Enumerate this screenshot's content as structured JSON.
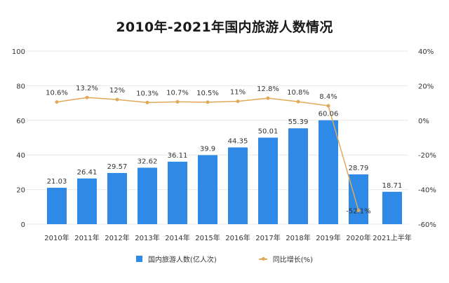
{
  "title": "2010年-2021年国内旅游人数情况",
  "colors": {
    "bar": "#2e8ae6",
    "line": "#e0a95a",
    "grid": "#e8e8e8",
    "text": "#333333"
  },
  "legend": [
    {
      "label": "国内旅游人数(亿人次)",
      "type": "bar"
    },
    {
      "label": "同比增长(%)",
      "type": "line"
    }
  ],
  "chart_data": {
    "type": "bar",
    "title": "2010年-2021年国内旅游人数情况",
    "categories": [
      "2010年",
      "2011年",
      "2012年",
      "2013年",
      "2014年",
      "2015年",
      "2016年",
      "2017年",
      "2018年",
      "2019年",
      "2020年",
      "2021上半年"
    ],
    "series": [
      {
        "name": "国内旅游人数(亿人次)",
        "type": "bar",
        "axis": "left",
        "values": [
          21.03,
          26.41,
          29.57,
          32.62,
          36.11,
          39.9,
          44.35,
          50.01,
          55.39,
          60.06,
          28.79,
          18.71
        ],
        "labels": [
          "21.03",
          "26.41",
          "29.57",
          "32.62",
          "36.11",
          "39.9",
          "44.35",
          "50.01",
          "55.39",
          "60.06",
          "28.79",
          "18.71"
        ]
      },
      {
        "name": "同比增长(%)",
        "type": "line",
        "axis": "right",
        "values": [
          10.6,
          13.2,
          12,
          10.3,
          10.7,
          10.5,
          11,
          12.8,
          10.8,
          8.4,
          -52.1,
          null
        ],
        "labels": [
          "10.6%",
          "13.2%",
          "12%",
          "10.3%",
          "10.7%",
          "10.5%",
          "11%",
          "12.8%",
          "10.8%",
          "8.4%",
          "-52.1%",
          ""
        ]
      }
    ],
    "left_axis": {
      "ylim": [
        0,
        100
      ],
      "ticks": [
        "0",
        "20",
        "40",
        "60",
        "80",
        "100"
      ]
    },
    "right_axis": {
      "ylim": [
        -60,
        40
      ],
      "ticks": [
        "-60%",
        "-40%",
        "-20%",
        "0%",
        "20%",
        "40%"
      ]
    },
    "grid": true,
    "legend_position": "bottom"
  }
}
